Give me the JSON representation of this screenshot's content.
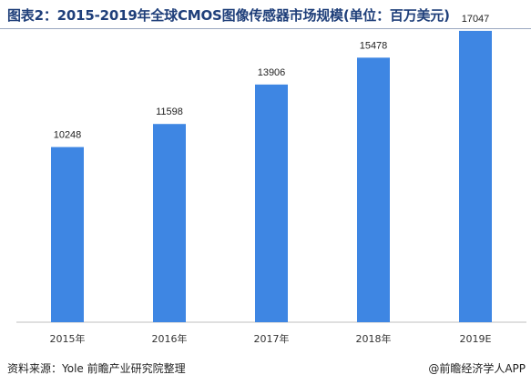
{
  "title": "图表2：2015-2019年全球CMOS图像传感器市场规模(单位：百万美元)",
  "source": "资料来源：Yole 前瞻产业研究院整理",
  "credit": "@前瞻经济学人APP",
  "colors": {
    "bar": "#3e86e3",
    "title": "#1f3f7a"
  },
  "chart_data": {
    "type": "bar",
    "categories": [
      "2015年",
      "2016年",
      "2017年",
      "2018年",
      "2019E"
    ],
    "values": [
      10248,
      11598,
      13906,
      15478,
      17047
    ],
    "ylim": [
      0,
      18000
    ],
    "grid": false,
    "legend": "none"
  }
}
